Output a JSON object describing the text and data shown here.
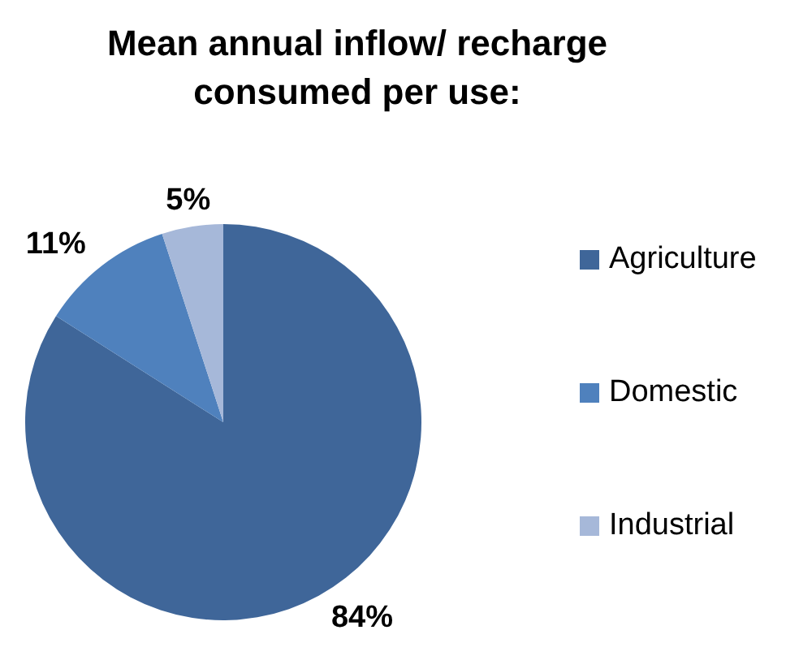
{
  "chart_data": {
    "type": "pie",
    "title": "Mean annual inflow/ recharge consumed per use:",
    "categories": [
      "Agriculture",
      "Domestic",
      "Industrial"
    ],
    "values": [
      84,
      11,
      5
    ],
    "colors": [
      "#3f6699",
      "#4f81bd",
      "#a6b8d9"
    ],
    "value_labels": [
      "84%",
      "11%",
      "5%"
    ],
    "legend": "right"
  }
}
